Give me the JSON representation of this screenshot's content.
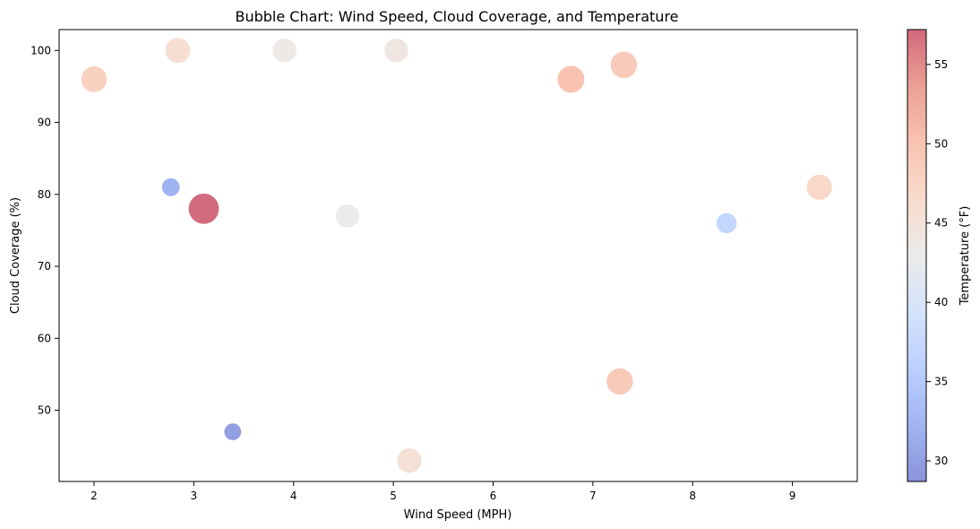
{
  "chart_data": {
    "type": "scatter",
    "title": "Bubble Chart: Wind Speed, Cloud Coverage, and Temperature",
    "xlabel": "Wind Speed (MPH)",
    "ylabel": "Cloud Coverage (%)",
    "xlim": [
      1.65,
      9.65
    ],
    "ylim": [
      40.1,
      102.9
    ],
    "xticks": [
      2,
      3,
      4,
      5,
      6,
      7,
      8,
      9
    ],
    "yticks": [
      50,
      60,
      70,
      80,
      90,
      100
    ],
    "grid": false,
    "colormap": "coolwarm",
    "marker_alpha": 0.6,
    "colorbar": {
      "label": "Temperature (°F)",
      "range": [
        28.7,
        57.2
      ],
      "ticks": [
        30,
        35,
        40,
        45,
        50,
        55
      ]
    },
    "points": [
      {
        "x": 2.0,
        "y": 96,
        "temp": 48
      },
      {
        "x": 2.84,
        "y": 100,
        "temp": 46
      },
      {
        "x": 3.91,
        "y": 100,
        "temp": 43.5
      },
      {
        "x": 5.03,
        "y": 100,
        "temp": 44
      },
      {
        "x": 6.78,
        "y": 96,
        "temp": 50
      },
      {
        "x": 7.31,
        "y": 98,
        "temp": 49
      },
      {
        "x": 2.77,
        "y": 81,
        "temp": 32
      },
      {
        "x": 3.1,
        "y": 78,
        "temp": 57
      },
      {
        "x": 4.54,
        "y": 77,
        "temp": 43
      },
      {
        "x": 8.34,
        "y": 76,
        "temp": 37
      },
      {
        "x": 9.27,
        "y": 81,
        "temp": 47
      },
      {
        "x": 7.27,
        "y": 54,
        "temp": 49
      },
      {
        "x": 3.39,
        "y": 47,
        "temp": 30
      },
      {
        "x": 5.16,
        "y": 43,
        "temp": 45.5
      }
    ]
  }
}
